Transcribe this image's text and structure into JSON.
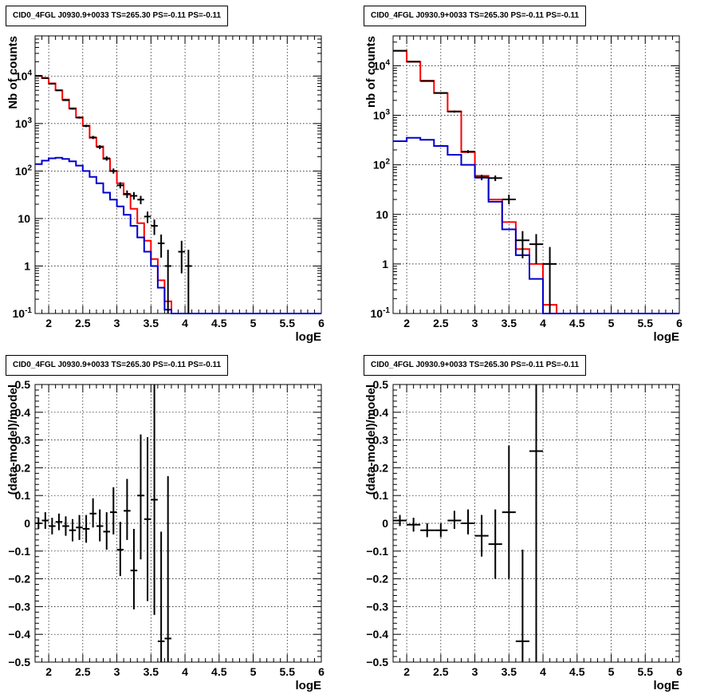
{
  "chart_data": [
    {
      "type": "histogram",
      "title": "CID0_4FGL J0930.9+0033 TS=265.30 PS=-0.11 PS=-0.11",
      "xlabel": "logE",
      "ylabel": "Nb of counts",
      "xlim": [
        1.8,
        6.0
      ],
      "ylim": [
        0.1,
        70000
      ],
      "yscale": "log",
      "grid": true,
      "bin_edges": [
        1.8,
        1.9,
        2.0,
        2.1,
        2.2,
        2.3,
        2.4,
        2.5,
        2.6,
        2.7,
        2.8,
        2.9,
        3.0,
        3.1,
        3.2,
        3.3,
        3.4,
        3.5,
        3.6,
        3.7,
        3.8,
        3.9,
        4.0,
        4.1,
        4.2,
        4.3,
        4.4,
        4.5,
        4.6,
        4.7,
        4.8,
        4.9,
        5.0,
        5.1,
        5.2,
        5.3,
        5.4,
        5.5,
        5.6,
        5.7,
        5.8,
        5.9,
        6.0
      ],
      "series": [
        {
          "name": "",
          "color": "#ff0000",
          "values": [
            10000,
            9000,
            7000,
            5000,
            3200,
            2100,
            1350,
            900,
            500,
            330,
            180,
            100,
            55,
            32,
            16,
            8,
            3.4,
            1.4,
            0.5,
            0.18,
            0.1,
            0.1,
            0.1,
            0.1,
            0.1,
            0.1,
            0.1,
            0.1,
            0.1,
            0.1,
            0.1,
            0.1,
            0.1,
            0.1,
            0.1,
            0.1,
            0.1,
            0.1,
            0.1,
            0.1,
            0.1,
            0.1
          ]
        },
        {
          "name": "",
          "color": "#0000cc",
          "values": [
            140,
            165,
            185,
            190,
            180,
            160,
            130,
            100,
            75,
            55,
            35,
            25,
            18,
            12,
            7,
            4,
            2,
            1,
            0.35,
            0.12,
            0.1,
            0.1,
            0.1,
            0.1,
            0.1,
            0.1,
            0.1,
            0.1,
            0.1,
            0.1,
            0.1,
            0.1,
            0.1,
            0.1,
            0.1,
            0.1,
            0.1,
            0.1,
            0.1,
            0.1,
            0.1,
            0.1
          ]
        }
      ],
      "data_points": [
        {
          "x": 1.85,
          "y": 10100,
          "ylo": 9900,
          "yhi": 10300
        },
        {
          "x": 1.95,
          "y": 9100,
          "ylo": 8900,
          "yhi": 9300
        },
        {
          "x": 2.05,
          "y": 6900,
          "ylo": 6700,
          "yhi": 7100
        },
        {
          "x": 2.15,
          "y": 5000,
          "ylo": 4850,
          "yhi": 5150
        },
        {
          "x": 2.25,
          "y": 3100,
          "ylo": 3000,
          "yhi": 3200
        },
        {
          "x": 2.35,
          "y": 2050,
          "ylo": 1970,
          "yhi": 2130
        },
        {
          "x": 2.45,
          "y": 1330,
          "ylo": 1270,
          "yhi": 1400
        },
        {
          "x": 2.55,
          "y": 890,
          "ylo": 840,
          "yhi": 940
        },
        {
          "x": 2.65,
          "y": 510,
          "ylo": 470,
          "yhi": 550
        },
        {
          "x": 2.75,
          "y": 320,
          "ylo": 290,
          "yhi": 350
        },
        {
          "x": 2.85,
          "y": 185,
          "ylo": 165,
          "yhi": 205
        },
        {
          "x": 2.95,
          "y": 100,
          "ylo": 88,
          "yhi": 113
        },
        {
          "x": 3.05,
          "y": 50,
          "ylo": 43,
          "yhi": 58
        },
        {
          "x": 3.15,
          "y": 33,
          "ylo": 27,
          "yhi": 39
        },
        {
          "x": 3.25,
          "y": 30,
          "ylo": 25,
          "yhi": 36
        },
        {
          "x": 3.35,
          "y": 25,
          "ylo": 20,
          "yhi": 30
        },
        {
          "x": 3.45,
          "y": 11,
          "ylo": 8,
          "yhi": 14
        },
        {
          "x": 3.55,
          "y": 7,
          "ylo": 4.5,
          "yhi": 9.5
        },
        {
          "x": 3.65,
          "y": 3,
          "ylo": 1.5,
          "yhi": 4.6
        },
        {
          "x": 3.75,
          "y": 1,
          "ylo": 0.1,
          "yhi": 2.2
        },
        {
          "x": 3.95,
          "y": 2,
          "ylo": 0.7,
          "yhi": 3.4
        },
        {
          "x": 4.05,
          "y": 1,
          "ylo": 0.1,
          "yhi": 2.2
        }
      ],
      "xticks": [
        2,
        2.5,
        3,
        3.5,
        4,
        4.5,
        5,
        5.5,
        6
      ],
      "xtick_labels": [
        "2",
        "2.5",
        "3",
        "3.5",
        "4",
        "4.5",
        "5",
        "5.5",
        "6"
      ],
      "yticks": [
        0.1,
        1,
        10,
        100,
        1000,
        10000
      ],
      "ytick_labels": [
        "10^-1",
        "1",
        "10",
        "10^2",
        "10^3",
        "10^4"
      ]
    },
    {
      "type": "histogram",
      "title": "CID0_4FGL J0930.9+0033 TS=265.30 PS=-0.11 PS=-0.11",
      "xlabel": "logE",
      "ylabel": "nb of counts",
      "xlim": [
        1.8,
        6.0
      ],
      "ylim": [
        0.1,
        40000
      ],
      "yscale": "log",
      "grid": true,
      "bin_edges": [
        1.8,
        2.0,
        2.2,
        2.4,
        2.6,
        2.8,
        3.0,
        3.2,
        3.4,
        3.6,
        3.8,
        4.0,
        4.2,
        4.4,
        4.6,
        4.8,
        5.0,
        5.2,
        5.4,
        5.6,
        5.8,
        6.0
      ],
      "series": [
        {
          "name": "",
          "color": "#ff0000",
          "values": [
            20000,
            12000,
            5000,
            2800,
            1200,
            180,
            60,
            20,
            7,
            2,
            1,
            0.15,
            0.1,
            0.1,
            0.1,
            0.1,
            0.1,
            0.1,
            0.1,
            0.1,
            0.1
          ]
        },
        {
          "name": "",
          "color": "#0000cc",
          "values": [
            300,
            350,
            320,
            240,
            160,
            100,
            55,
            18,
            5,
            1.5,
            0.5,
            0.1,
            0.1,
            0.1,
            0.1,
            0.1,
            0.1,
            0.1,
            0.1,
            0.1,
            0.1
          ]
        }
      ],
      "data_points": [
        {
          "x": 1.9,
          "y": 20100,
          "ylo": 19800,
          "yhi": 20400
        },
        {
          "x": 2.1,
          "y": 12100,
          "ylo": 11900,
          "yhi": 12300
        },
        {
          "x": 2.3,
          "y": 4900,
          "ylo": 4780,
          "yhi": 5020
        },
        {
          "x": 2.5,
          "y": 2820,
          "ylo": 2720,
          "yhi": 2920
        },
        {
          "x": 2.7,
          "y": 1190,
          "ylo": 1130,
          "yhi": 1250
        },
        {
          "x": 2.9,
          "y": 185,
          "ylo": 172,
          "yhi": 198
        },
        {
          "x": 3.1,
          "y": 56,
          "ylo": 49,
          "yhi": 63
        },
        {
          "x": 3.3,
          "y": 54,
          "ylo": 47,
          "yhi": 61
        },
        {
          "x": 3.5,
          "y": 20,
          "ylo": 16,
          "yhi": 25
        },
        {
          "x": 3.7,
          "y": 3,
          "ylo": 1.3,
          "yhi": 4.6
        },
        {
          "x": 3.9,
          "y": 2.5,
          "ylo": 1,
          "yhi": 4
        },
        {
          "x": 4.1,
          "y": 1,
          "ylo": 0.1,
          "yhi": 2.2
        }
      ],
      "xticks": [
        2,
        2.5,
        3,
        3.5,
        4,
        4.5,
        5,
        5.5,
        6
      ],
      "xtick_labels": [
        "2",
        "2.5",
        "3",
        "3.5",
        "4",
        "4.5",
        "5",
        "5.5",
        "6"
      ],
      "yticks": [
        0.1,
        1,
        10,
        100,
        1000,
        10000
      ],
      "ytick_labels": [
        "10^-1",
        "1",
        "10",
        "10^2",
        "10^3",
        "10^4"
      ]
    },
    {
      "type": "scatter",
      "title": "CID0_4FGL J0930.9+0033 TS=265.30 PS=-0.11 PS=-0.11",
      "xlabel": "logE",
      "ylabel": "(data-model)/model",
      "xlim": [
        1.8,
        6.0
      ],
      "ylim": [
        -0.5,
        0.5
      ],
      "grid": true,
      "data_points": [
        {
          "x": 1.85,
          "y": 0.0,
          "ylo": -0.02,
          "yhi": 0.02
        },
        {
          "x": 1.95,
          "y": 0.01,
          "ylo": -0.02,
          "yhi": 0.04
        },
        {
          "x": 2.05,
          "y": -0.01,
          "ylo": -0.04,
          "yhi": 0.02
        },
        {
          "x": 2.15,
          "y": 0.005,
          "ylo": -0.025,
          "yhi": 0.035
        },
        {
          "x": 2.25,
          "y": -0.01,
          "ylo": -0.045,
          "yhi": 0.025
        },
        {
          "x": 2.35,
          "y": -0.025,
          "ylo": -0.065,
          "yhi": 0.015
        },
        {
          "x": 2.45,
          "y": -0.015,
          "ylo": -0.06,
          "yhi": 0.03
        },
        {
          "x": 2.55,
          "y": -0.02,
          "ylo": -0.07,
          "yhi": 0.03
        },
        {
          "x": 2.65,
          "y": 0.035,
          "ylo": -0.015,
          "yhi": 0.09
        },
        {
          "x": 2.75,
          "y": -0.01,
          "ylo": -0.065,
          "yhi": 0.05
        },
        {
          "x": 2.85,
          "y": -0.03,
          "ylo": -0.095,
          "yhi": 0.04
        },
        {
          "x": 2.95,
          "y": 0.04,
          "ylo": -0.04,
          "yhi": 0.13
        },
        {
          "x": 3.05,
          "y": -0.095,
          "ylo": -0.19,
          "yhi": 0.005
        },
        {
          "x": 3.15,
          "y": 0.045,
          "ylo": -0.06,
          "yhi": 0.16
        },
        {
          "x": 3.25,
          "y": -0.17,
          "ylo": -0.31,
          "yhi": -0.02
        },
        {
          "x": 3.35,
          "y": 0.1,
          "ylo": -0.13,
          "yhi": 0.32
        },
        {
          "x": 3.45,
          "y": 0.015,
          "ylo": -0.28,
          "yhi": 0.31
        },
        {
          "x": 3.55,
          "y": 0.085,
          "ylo": -0.33,
          "yhi": 0.5
        },
        {
          "x": 3.65,
          "y": -0.425,
          "ylo": -0.5,
          "yhi": -0.03
        },
        {
          "x": 3.75,
          "y": -0.415,
          "ylo": -0.5,
          "yhi": 0.17
        }
      ],
      "xticks": [
        2,
        2.5,
        3,
        3.5,
        4,
        4.5,
        5,
        5.5,
        6
      ],
      "xtick_labels": [
        "2",
        "2.5",
        "3",
        "3.5",
        "4",
        "4.5",
        "5",
        "5.5",
        "6"
      ],
      "yticks": [
        -0.5,
        -0.4,
        -0.3,
        -0.2,
        -0.1,
        0,
        0.1,
        0.2,
        0.3,
        0.4,
        0.5
      ],
      "ytick_labels": [
        "−0.5",
        "−0.4",
        "−0.3",
        "−0.2",
        "−0.1",
        "0",
        "0.1",
        "0.2",
        "0.3",
        "0.4",
        "0.5"
      ]
    },
    {
      "type": "scatter",
      "title": "CID0_4FGL J0930.9+0033 TS=265.30 PS=-0.11 PS=-0.11",
      "xlabel": "logE",
      "ylabel": "(data-model)/model",
      "xlim": [
        1.8,
        6.0
      ],
      "ylim": [
        -0.5,
        0.5
      ],
      "grid": true,
      "data_points": [
        {
          "x": 1.9,
          "y": 0.01,
          "ylo": -0.01,
          "yhi": 0.03
        },
        {
          "x": 2.1,
          "y": -0.005,
          "ylo": -0.03,
          "yhi": 0.02
        },
        {
          "x": 2.3,
          "y": -0.025,
          "ylo": -0.05,
          "yhi": 0.0
        },
        {
          "x": 2.5,
          "y": -0.025,
          "ylo": -0.05,
          "yhi": 0.0
        },
        {
          "x": 2.7,
          "y": 0.01,
          "ylo": -0.02,
          "yhi": 0.045
        },
        {
          "x": 2.9,
          "y": 0.0,
          "ylo": -0.04,
          "yhi": 0.05
        },
        {
          "x": 3.1,
          "y": -0.045,
          "ylo": -0.12,
          "yhi": 0.03
        },
        {
          "x": 3.3,
          "y": -0.075,
          "ylo": -0.2,
          "yhi": 0.05
        },
        {
          "x": 3.5,
          "y": 0.04,
          "ylo": -0.2,
          "yhi": 0.28
        },
        {
          "x": 3.7,
          "y": -0.425,
          "ylo": -0.5,
          "yhi": -0.095
        },
        {
          "x": 3.9,
          "y": 0.26,
          "ylo": -0.5,
          "yhi": 0.5
        }
      ],
      "xticks": [
        2,
        2.5,
        3,
        3.5,
        4,
        4.5,
        5,
        5.5,
        6
      ],
      "xtick_labels": [
        "2",
        "2.5",
        "3",
        "3.5",
        "4",
        "4.5",
        "5",
        "5.5",
        "6"
      ],
      "yticks": [
        -0.5,
        -0.4,
        -0.3,
        -0.2,
        -0.1,
        0,
        0.1,
        0.2,
        0.3,
        0.4,
        0.5
      ],
      "ytick_labels": [
        "−0.5",
        "−0.4",
        "−0.3",
        "−0.2",
        "−0.1",
        "0",
        "0.1",
        "0.2",
        "0.3",
        "0.4",
        "0.5"
      ]
    }
  ]
}
